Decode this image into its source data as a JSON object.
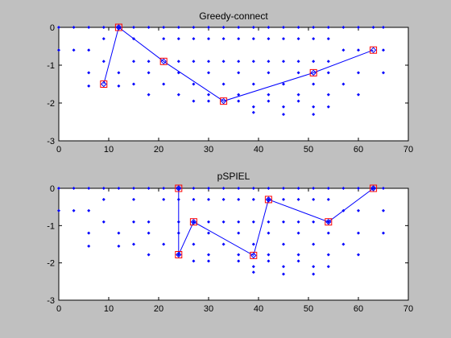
{
  "window": {
    "background": "#c0c0c0"
  },
  "chart_data": [
    {
      "type": "scatter",
      "title": "Greedy-connect",
      "xlabel": "",
      "ylabel": "",
      "xlim": [
        0,
        70
      ],
      "ylim": [
        -3,
        0
      ],
      "xticks": [
        "0",
        "10",
        "20",
        "30",
        "40",
        "50",
        "60",
        "70"
      ],
      "yticks": [
        "0",
        "-1",
        "-2",
        "-3"
      ],
      "grid": false,
      "colors": {
        "points": "#0000ff",
        "path": "#0000ff",
        "selected_marker": "#ff0000"
      },
      "points": [
        [
          0,
          0
        ],
        [
          3,
          0
        ],
        [
          6,
          0
        ],
        [
          9,
          0
        ],
        [
          12,
          0
        ],
        [
          15,
          0
        ],
        [
          18,
          0
        ],
        [
          21,
          0
        ],
        [
          24,
          0
        ],
        [
          27,
          0
        ],
        [
          30,
          0
        ],
        [
          33,
          0
        ],
        [
          36,
          0
        ],
        [
          39,
          0
        ],
        [
          42,
          0
        ],
        [
          45,
          0
        ],
        [
          48,
          0
        ],
        [
          51,
          0
        ],
        [
          54,
          0
        ],
        [
          57,
          0
        ],
        [
          60,
          0
        ],
        [
          63,
          0
        ],
        [
          65,
          0
        ],
        [
          0,
          -0.6
        ],
        [
          3,
          -0.6
        ],
        [
          6,
          -0.6
        ],
        [
          57,
          -0.6
        ],
        [
          60,
          -0.6
        ],
        [
          65,
          -0.6
        ],
        [
          9,
          -0.3
        ],
        [
          15,
          -0.3
        ],
        [
          21,
          -0.3
        ],
        [
          24,
          -0.3
        ],
        [
          27,
          -0.3
        ],
        [
          30,
          -0.3
        ],
        [
          33,
          -0.3
        ],
        [
          36,
          -0.3
        ],
        [
          39,
          -0.3
        ],
        [
          42,
          -0.3
        ],
        [
          45,
          -0.3
        ],
        [
          48,
          -0.3
        ],
        [
          51,
          -0.3
        ],
        [
          54,
          -0.3
        ],
        [
          9,
          -0.9
        ],
        [
          15,
          -0.9
        ],
        [
          18,
          -0.9
        ],
        [
          24,
          -0.9
        ],
        [
          27,
          -0.9
        ],
        [
          30,
          -0.9
        ],
        [
          33,
          -0.9
        ],
        [
          36,
          -0.9
        ],
        [
          39,
          -0.9
        ],
        [
          42,
          -0.9
        ],
        [
          45,
          -0.9
        ],
        [
          48,
          -0.9
        ],
        [
          51,
          -0.9
        ],
        [
          54,
          -0.9
        ],
        [
          6,
          -1.2
        ],
        [
          12,
          -1.2
        ],
        [
          18,
          -1.2
        ],
        [
          24,
          -1.2
        ],
        [
          30,
          -1.2
        ],
        [
          36,
          -1.2
        ],
        [
          42,
          -1.2
        ],
        [
          48,
          -1.2
        ],
        [
          54,
          -1.2
        ],
        [
          60,
          -1.2
        ],
        [
          65,
          -1.2
        ],
        [
          6,
          -1.55
        ],
        [
          12,
          -1.55
        ],
        [
          15,
          -1.5
        ],
        [
          21,
          -1.5
        ],
        [
          27,
          -1.5
        ],
        [
          33,
          -1.5
        ],
        [
          39,
          -1.5
        ],
        [
          45,
          -1.5
        ],
        [
          51,
          -1.5
        ],
        [
          57,
          -1.5
        ],
        [
          18,
          -1.78
        ],
        [
          24,
          -1.78
        ],
        [
          30,
          -1.78
        ],
        [
          36,
          -1.78
        ],
        [
          42,
          -1.78
        ],
        [
          48,
          -1.78
        ],
        [
          54,
          -1.78
        ],
        [
          60,
          -1.78
        ],
        [
          27,
          -1.95
        ],
        [
          30,
          -1.95
        ],
        [
          36,
          -1.95
        ],
        [
          42,
          -1.95
        ],
        [
          48,
          -1.95
        ],
        [
          39,
          -2.1
        ],
        [
          45,
          -2.1
        ],
        [
          51,
          -2.1
        ],
        [
          54,
          -2.1
        ],
        [
          39,
          -2.25
        ],
        [
          45,
          -2.3
        ],
        [
          51,
          -2.3
        ]
      ],
      "path": [
        [
          9,
          -1.5
        ],
        [
          12,
          0
        ],
        [
          21,
          -0.9
        ],
        [
          33,
          -1.95
        ],
        [
          51,
          -1.2
        ],
        [
          63,
          -0.6
        ]
      ],
      "selected": [
        [
          9,
          -1.5
        ],
        [
          12,
          0
        ],
        [
          21,
          -0.9
        ],
        [
          33,
          -1.95
        ],
        [
          51,
          -1.2
        ],
        [
          63,
          -0.6
        ]
      ]
    },
    {
      "type": "scatter",
      "title": "pSPIEL",
      "xlabel": "",
      "ylabel": "",
      "xlim": [
        0,
        70
      ],
      "ylim": [
        -3,
        0
      ],
      "xticks": [
        "0",
        "10",
        "20",
        "30",
        "40",
        "50",
        "60",
        "70"
      ],
      "yticks": [
        "0",
        "-1",
        "-2",
        "-3"
      ],
      "grid": false,
      "colors": {
        "points": "#0000ff",
        "path": "#0000ff",
        "selected_marker": "#ff0000"
      },
      "points": [
        [
          0,
          0
        ],
        [
          3,
          0
        ],
        [
          6,
          0
        ],
        [
          9,
          0
        ],
        [
          12,
          0
        ],
        [
          15,
          0
        ],
        [
          18,
          0
        ],
        [
          21,
          0
        ],
        [
          24,
          0
        ],
        [
          27,
          0
        ],
        [
          30,
          0
        ],
        [
          33,
          0
        ],
        [
          36,
          0
        ],
        [
          39,
          0
        ],
        [
          42,
          0
        ],
        [
          45,
          0
        ],
        [
          48,
          0
        ],
        [
          51,
          0
        ],
        [
          54,
          0
        ],
        [
          57,
          0
        ],
        [
          60,
          0
        ],
        [
          63,
          0
        ],
        [
          65,
          0
        ],
        [
          0,
          -0.6
        ],
        [
          3,
          -0.6
        ],
        [
          6,
          -0.6
        ],
        [
          57,
          -0.6
        ],
        [
          60,
          -0.6
        ],
        [
          65,
          -0.6
        ],
        [
          9,
          -0.3
        ],
        [
          15,
          -0.3
        ],
        [
          21,
          -0.3
        ],
        [
          24,
          -0.3
        ],
        [
          27,
          -0.3
        ],
        [
          30,
          -0.3
        ],
        [
          33,
          -0.3
        ],
        [
          36,
          -0.3
        ],
        [
          39,
          -0.3
        ],
        [
          42,
          -0.3
        ],
        [
          45,
          -0.3
        ],
        [
          48,
          -0.3
        ],
        [
          51,
          -0.3
        ],
        [
          54,
          -0.3
        ],
        [
          9,
          -0.9
        ],
        [
          15,
          -0.9
        ],
        [
          18,
          -0.9
        ],
        [
          24,
          -0.9
        ],
        [
          27,
          -0.9
        ],
        [
          30,
          -0.9
        ],
        [
          33,
          -0.9
        ],
        [
          36,
          -0.9
        ],
        [
          39,
          -0.9
        ],
        [
          42,
          -0.9
        ],
        [
          45,
          -0.9
        ],
        [
          48,
          -0.9
        ],
        [
          51,
          -0.9
        ],
        [
          54,
          -0.9
        ],
        [
          6,
          -1.2
        ],
        [
          12,
          -1.2
        ],
        [
          18,
          -1.2
        ],
        [
          24,
          -1.2
        ],
        [
          30,
          -1.2
        ],
        [
          36,
          -1.2
        ],
        [
          42,
          -1.2
        ],
        [
          48,
          -1.2
        ],
        [
          54,
          -1.2
        ],
        [
          60,
          -1.2
        ],
        [
          65,
          -1.2
        ],
        [
          6,
          -1.55
        ],
        [
          12,
          -1.55
        ],
        [
          15,
          -1.5
        ],
        [
          21,
          -1.5
        ],
        [
          27,
          -1.5
        ],
        [
          33,
          -1.5
        ],
        [
          39,
          -1.5
        ],
        [
          45,
          -1.5
        ],
        [
          51,
          -1.5
        ],
        [
          57,
          -1.5
        ],
        [
          18,
          -1.78
        ],
        [
          24,
          -1.78
        ],
        [
          30,
          -1.78
        ],
        [
          36,
          -1.78
        ],
        [
          42,
          -1.78
        ],
        [
          48,
          -1.78
        ],
        [
          54,
          -1.78
        ],
        [
          60,
          -1.78
        ],
        [
          27,
          -1.95
        ],
        [
          30,
          -1.95
        ],
        [
          36,
          -1.95
        ],
        [
          42,
          -1.95
        ],
        [
          48,
          -1.95
        ],
        [
          39,
          -2.1
        ],
        [
          45,
          -2.1
        ],
        [
          51,
          -2.1
        ],
        [
          54,
          -2.1
        ],
        [
          39,
          -2.25
        ],
        [
          45,
          -2.3
        ],
        [
          51,
          -2.3
        ]
      ],
      "path": [
        [
          24,
          0
        ],
        [
          24,
          -1.78
        ],
        [
          27,
          -0.9
        ],
        [
          39,
          -1.8
        ],
        [
          42,
          -0.3
        ],
        [
          54,
          -0.9
        ],
        [
          63,
          0
        ]
      ],
      "selected": [
        [
          24,
          0
        ],
        [
          24,
          -1.78
        ],
        [
          27,
          -0.9
        ],
        [
          39,
          -1.8
        ],
        [
          42,
          -0.3
        ],
        [
          54,
          -0.9
        ],
        [
          63,
          0
        ]
      ]
    }
  ]
}
